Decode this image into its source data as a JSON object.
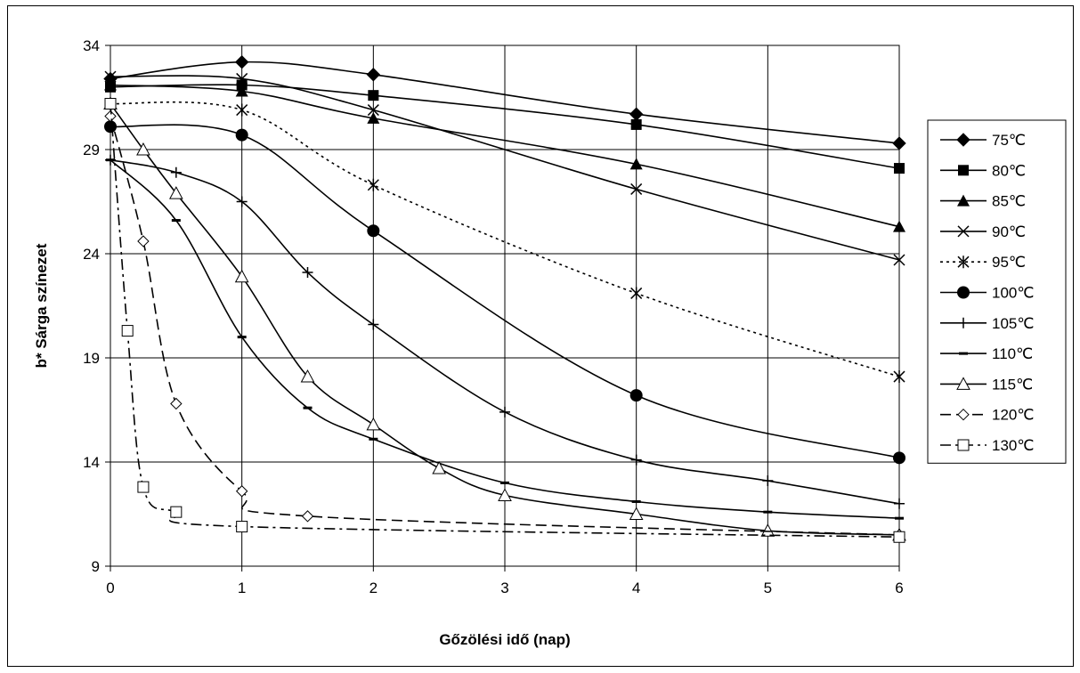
{
  "chart_data": {
    "type": "line",
    "title": "",
    "xlabel": "Gőzölési idő (nap)",
    "ylabel": "b* Sárga színezet",
    "xlim": [
      0,
      6
    ],
    "ylim": [
      9,
      34
    ],
    "xticks": [
      "0",
      "1",
      "2",
      "3",
      "4",
      "5",
      "6"
    ],
    "yticks": [
      "9",
      "14",
      "19",
      "24",
      "29",
      "34"
    ],
    "grid": true,
    "legend_position": "right",
    "series": [
      {
        "name": "75℃",
        "marker": "diamond",
        "dash": "solid",
        "x": [
          0,
          1,
          2,
          4,
          6
        ],
        "y": [
          32.4,
          33.2,
          32.6,
          30.7,
          29.3
        ]
      },
      {
        "name": "80℃",
        "marker": "square",
        "dash": "solid",
        "x": [
          0,
          1,
          2,
          4,
          6
        ],
        "y": [
          32.0,
          32.1,
          31.6,
          30.2,
          28.1
        ]
      },
      {
        "name": "85℃",
        "marker": "triangle",
        "dash": "solid",
        "x": [
          0,
          1,
          2,
          4,
          6
        ],
        "y": [
          32.1,
          31.8,
          30.5,
          28.3,
          25.3
        ]
      },
      {
        "name": "90℃",
        "marker": "x",
        "dash": "solid",
        "x": [
          0,
          1,
          2,
          4,
          6
        ],
        "y": [
          32.5,
          32.4,
          30.9,
          27.1,
          23.7
        ]
      },
      {
        "name": "95℃",
        "marker": "star",
        "dash": "dotted",
        "x": [
          0,
          1,
          2,
          4,
          6
        ],
        "y": [
          31.2,
          30.9,
          27.3,
          22.1,
          18.1
        ]
      },
      {
        "name": "100℃",
        "marker": "circle",
        "dash": "solid",
        "x": [
          0,
          1,
          2,
          4,
          6
        ],
        "y": [
          30.1,
          29.7,
          25.1,
          17.2,
          14.2
        ]
      },
      {
        "name": "105℃",
        "marker": "plus",
        "dash": "solid",
        "x": [
          0,
          0.5,
          1,
          1.5,
          2,
          3,
          4,
          5,
          6
        ],
        "y": [
          28.5,
          27.9,
          26.5,
          23.1,
          20.6,
          16.4,
          14.1,
          13.1,
          12.0
        ]
      },
      {
        "name": "110℃",
        "marker": "dash",
        "dash": "solid",
        "x": [
          0,
          0.5,
          1,
          1.5,
          2,
          3,
          4,
          5,
          6
        ],
        "y": [
          28.5,
          25.6,
          20.0,
          16.6,
          15.1,
          13.0,
          12.1,
          11.6,
          11.3
        ]
      },
      {
        "name": "115℃",
        "marker": "triangle-open",
        "dash": "solid",
        "x": [
          0,
          0.25,
          0.5,
          1,
          1.5,
          2,
          2.5,
          3,
          4,
          5,
          6
        ],
        "y": [
          31.2,
          29.0,
          26.9,
          22.9,
          18.1,
          15.8,
          13.7,
          12.4,
          11.5,
          10.7,
          10.5
        ]
      },
      {
        "name": "120℃",
        "marker": "diamond-open",
        "dash": "dashed",
        "x": [
          0,
          0.25,
          0.5,
          1,
          1.5,
          6
        ],
        "y": [
          30.6,
          24.6,
          16.8,
          12.6,
          11.4,
          10.5
        ]
      },
      {
        "name": "130℃",
        "marker": "square-open",
        "dash": "dashdot",
        "x": [
          0,
          0.13,
          0.25,
          0.5,
          1,
          6
        ],
        "y": [
          31.2,
          20.3,
          12.8,
          11.6,
          10.9,
          10.4
        ]
      }
    ]
  }
}
